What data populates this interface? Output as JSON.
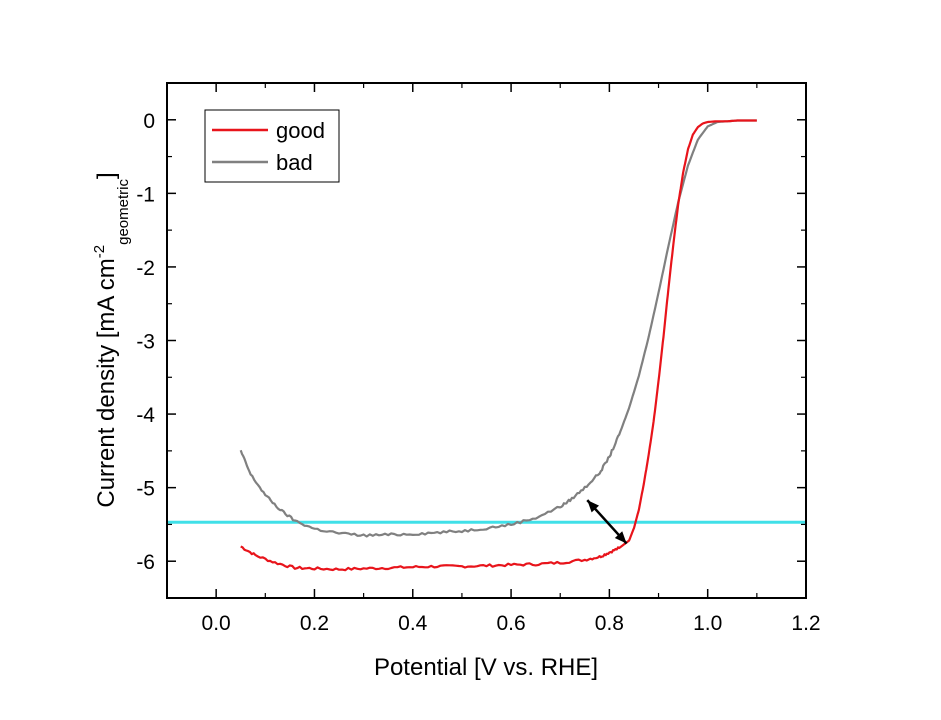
{
  "chart_data": {
    "type": "line",
    "title": "",
    "xlabel": "Potential [V vs. RHE]",
    "ylabel_main": "Current density [mA cm",
    "ylabel_sup": "-2",
    "ylabel_sub": "geometric",
    "ylabel_end": "]",
    "xlim": [
      -0.1,
      1.2
    ],
    "ylim": [
      -6.5,
      0.5
    ],
    "xticks": [
      0.0,
      0.2,
      0.4,
      0.6,
      0.8,
      1.0,
      1.2
    ],
    "xtick_labels": [
      "0.0",
      "0.2",
      "0.4",
      "0.6",
      "0.8",
      "1.0",
      "1.2"
    ],
    "yticks": [
      0,
      -1,
      -2,
      -3,
      -4,
      -5,
      -6
    ],
    "ytick_labels": [
      "0",
      "-1",
      "-2",
      "-3",
      "-4",
      "-5",
      "-6"
    ],
    "grid": false,
    "legend_position": "top-left",
    "series": [
      {
        "name": "good",
        "color": "#e8141b",
        "x": [
          0.05,
          0.08,
          0.12,
          0.16,
          0.2,
          0.25,
          0.3,
          0.35,
          0.4,
          0.45,
          0.5,
          0.55,
          0.6,
          0.65,
          0.7,
          0.75,
          0.78,
          0.8,
          0.82,
          0.84,
          0.85,
          0.86,
          0.87,
          0.88,
          0.89,
          0.9,
          0.91,
          0.92,
          0.93,
          0.94,
          0.95,
          0.96,
          0.97,
          0.98,
          0.99,
          1.0,
          1.02,
          1.04,
          1.06,
          1.08,
          1.1
        ],
        "y": [
          -5.8,
          -5.92,
          -6.02,
          -6.09,
          -6.1,
          -6.11,
          -6.1,
          -6.09,
          -6.08,
          -6.07,
          -6.07,
          -6.06,
          -6.05,
          -6.04,
          -6.02,
          -5.98,
          -5.94,
          -5.88,
          -5.82,
          -5.72,
          -5.55,
          -5.3,
          -4.95,
          -4.55,
          -4.1,
          -3.55,
          -2.95,
          -2.3,
          -1.7,
          -1.15,
          -0.72,
          -0.4,
          -0.2,
          -0.1,
          -0.05,
          -0.03,
          -0.02,
          -0.02,
          -0.01,
          -0.01,
          -0.01
        ]
      },
      {
        "name": "bad",
        "color": "#808080",
        "x": [
          0.05,
          0.07,
          0.1,
          0.13,
          0.16,
          0.2,
          0.25,
          0.3,
          0.35,
          0.4,
          0.45,
          0.5,
          0.55,
          0.6,
          0.65,
          0.7,
          0.72,
          0.75,
          0.78,
          0.8,
          0.82,
          0.84,
          0.86,
          0.88,
          0.9,
          0.92,
          0.94,
          0.96,
          0.98,
          1.0,
          1.02,
          1.04,
          1.06,
          1.08,
          1.1
        ],
        "y": [
          -4.5,
          -4.82,
          -5.1,
          -5.3,
          -5.45,
          -5.56,
          -5.62,
          -5.65,
          -5.64,
          -5.63,
          -5.61,
          -5.59,
          -5.55,
          -5.5,
          -5.41,
          -5.26,
          -5.17,
          -5.0,
          -4.8,
          -4.58,
          -4.28,
          -3.92,
          -3.48,
          -2.95,
          -2.35,
          -1.72,
          -1.12,
          -0.62,
          -0.27,
          -0.09,
          -0.03,
          -0.02,
          -0.01,
          -0.01,
          -0.01
        ]
      }
    ],
    "reference_line": {
      "y": -5.47,
      "color": "#40e0e8"
    },
    "arrow": {
      "from": [
        0.835,
        -5.76
      ],
      "to": [
        0.755,
        -5.17
      ],
      "color": "#000000"
    }
  }
}
